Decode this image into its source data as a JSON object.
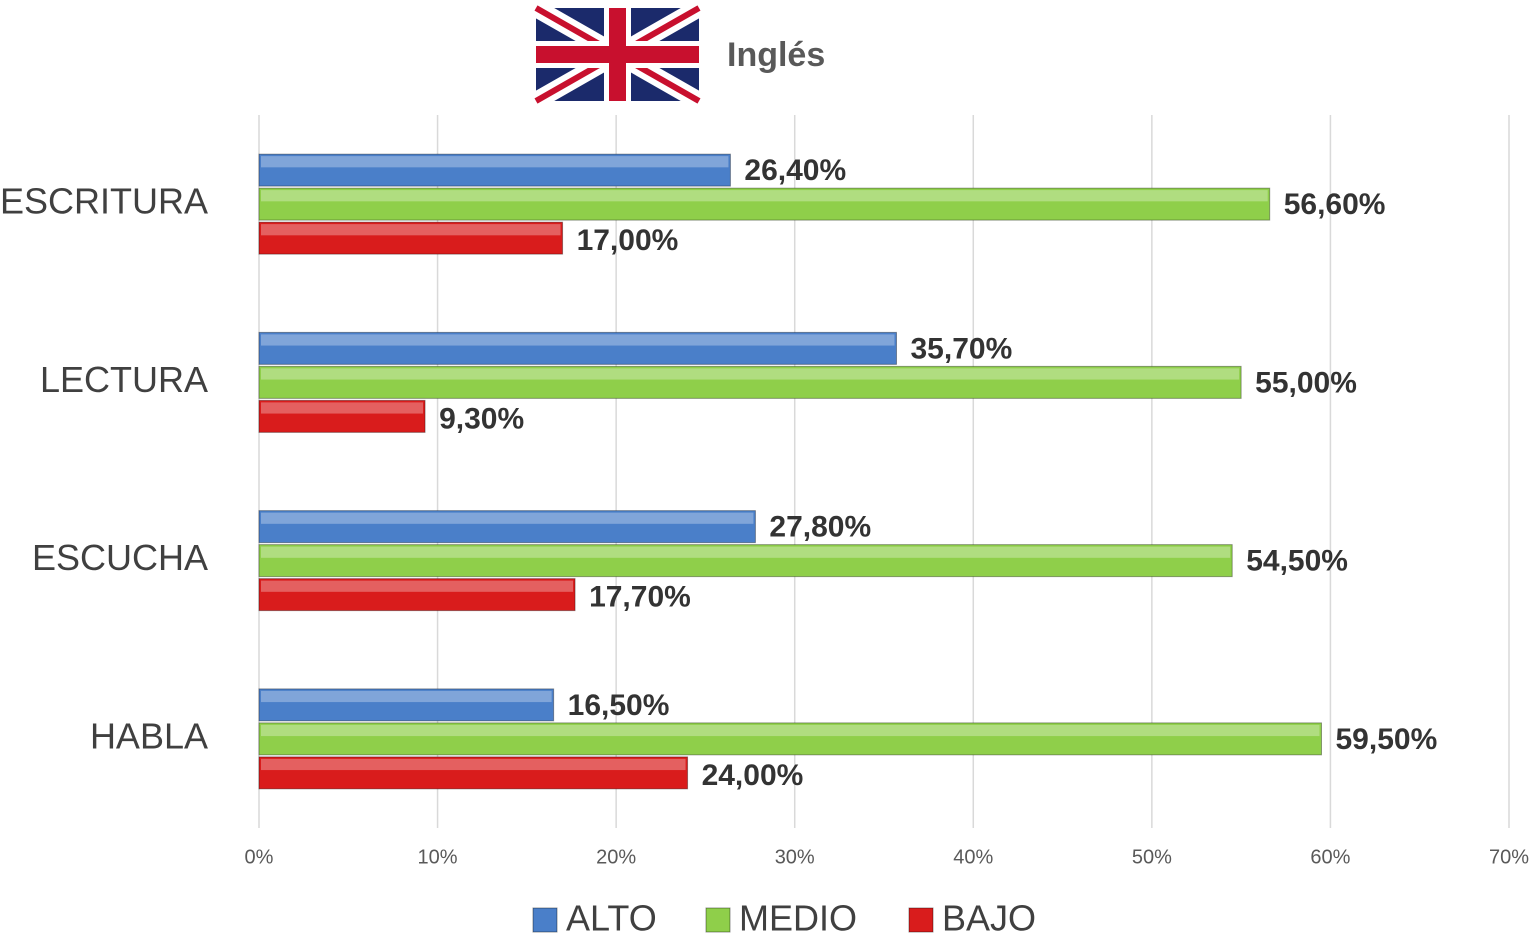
{
  "chart_data": {
    "type": "bar",
    "orientation": "horizontal",
    "title": "Inglés",
    "categories": [
      "ESCRITURA",
      "LECTURA",
      "ESCUCHA",
      "HABLA"
    ],
    "series": [
      {
        "name": "ALTO",
        "color": "#4a7fc9",
        "values": [
          26.4,
          35.7,
          27.8,
          16.5
        ],
        "value_labels": [
          "26,40%",
          "35,70%",
          "27,80%",
          "16,50%"
        ]
      },
      {
        "name": "MEDIO",
        "color": "#8fcf4a",
        "values": [
          56.6,
          55,
          54.5,
          59.5
        ],
        "value_labels": [
          "56,60%",
          "55,00%",
          "54,50%",
          "59,50%"
        ]
      },
      {
        "name": "BAJO",
        "color": "#d91c1c",
        "values": [
          17,
          9.3,
          17.7,
          24
        ],
        "value_labels": [
          "17,00%",
          "9,30%",
          "17,70%",
          "24,00%"
        ]
      }
    ],
    "xlim": [
      0,
      70
    ],
    "xticks": [
      {
        "value": 0,
        "label": "0%"
      },
      {
        "value": 10,
        "label": "10%"
      },
      {
        "value": 20,
        "label": "20%"
      },
      {
        "value": 30,
        "label": "30%"
      },
      {
        "value": 40,
        "label": "40%"
      },
      {
        "value": 50,
        "label": "50%"
      },
      {
        "value": 60,
        "label": "60%"
      },
      {
        "value": 70,
        "label": "70%"
      }
    ],
    "grid": true,
    "legend": "bottom"
  }
}
